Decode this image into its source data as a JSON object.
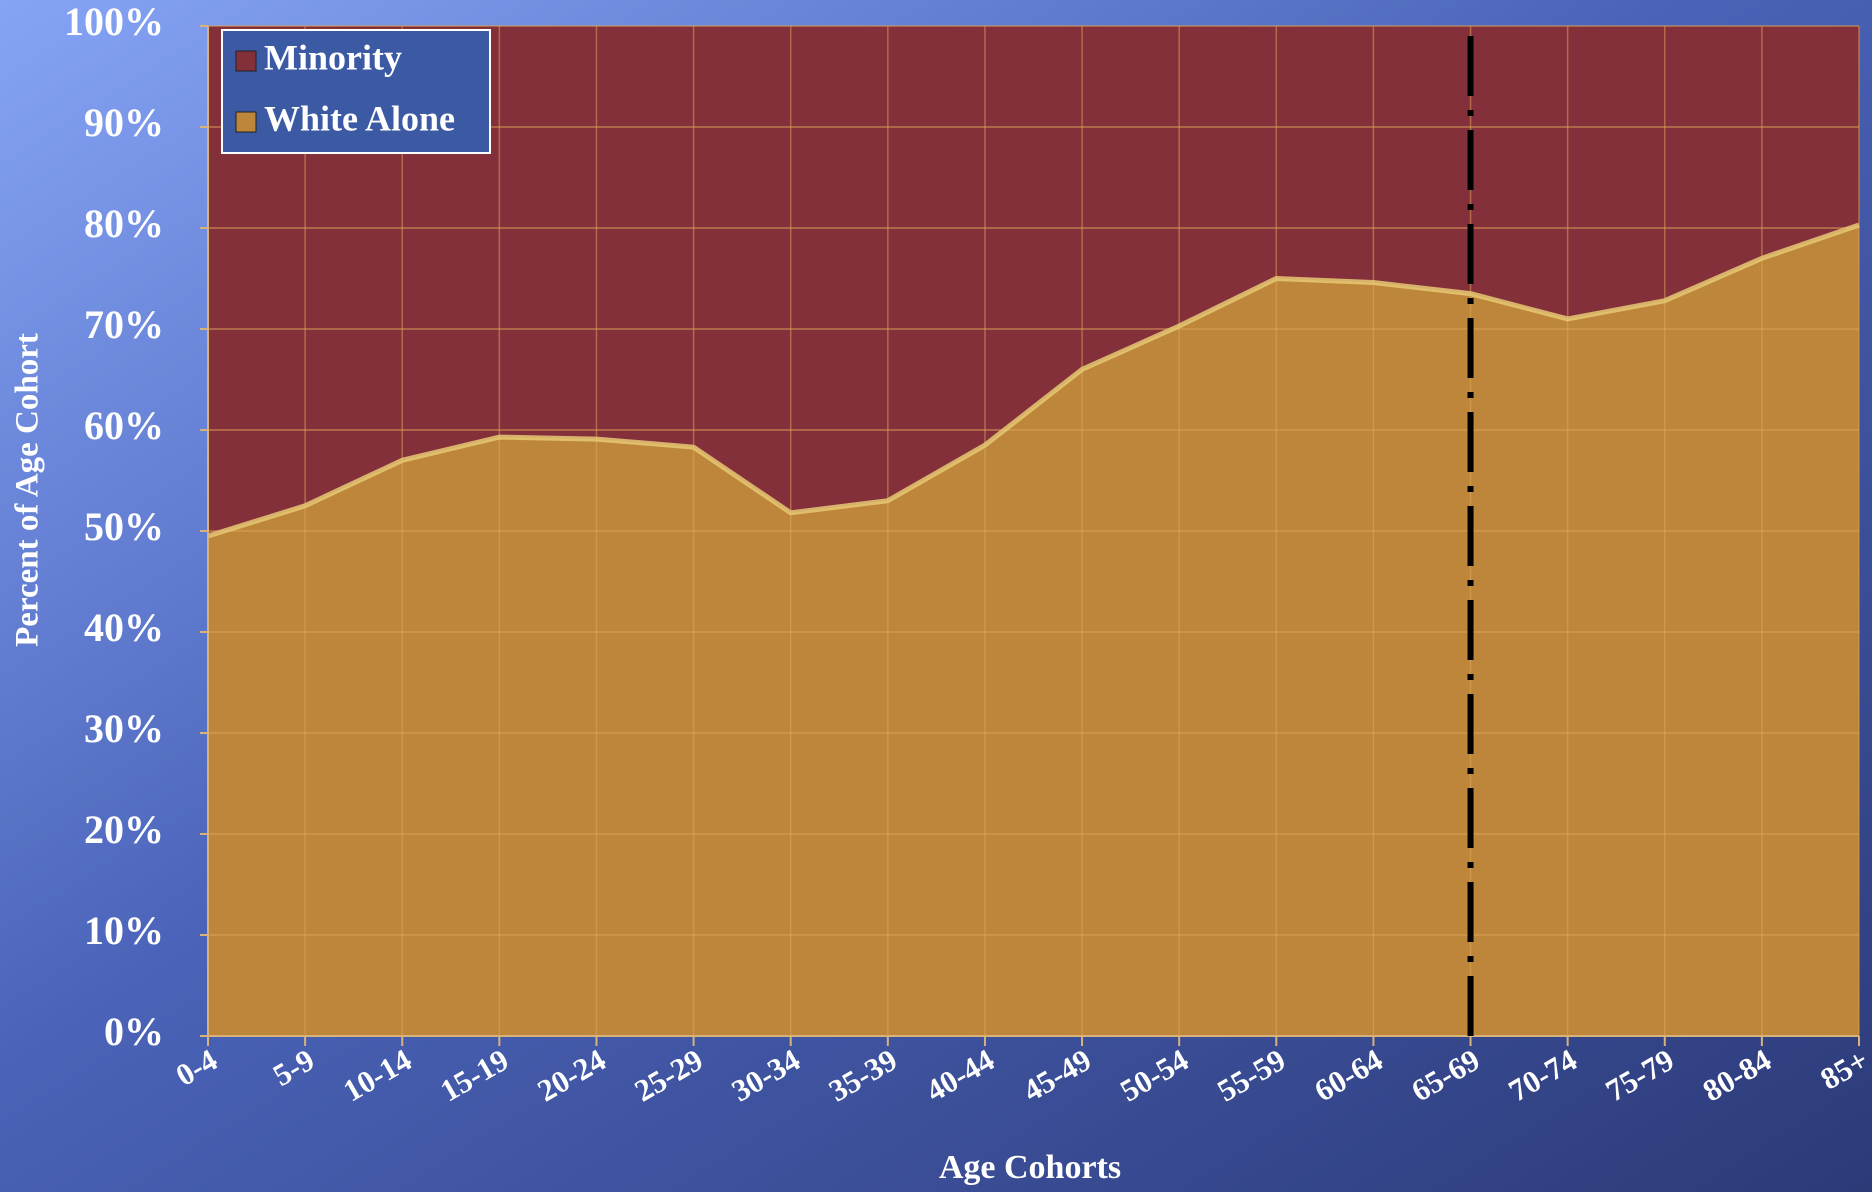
{
  "chart_data": {
    "type": "stacked_area",
    "x_label": "Age Cohorts",
    "y_label": "Percent of Age Cohort",
    "categories": [
      "0-4",
      "5-9",
      "10-14",
      "15-19",
      "20-24",
      "25-29",
      "30-34",
      "35-39",
      "40-44",
      "45-49",
      "50-54",
      "55-59",
      "60-64",
      "65-69",
      "70-74",
      "75-79",
      "80-84",
      "85+"
    ],
    "series": [
      {
        "name": "Minority",
        "color": "#84303a",
        "values": [
          50.5,
          47.5,
          43,
          40.7,
          40.9,
          41.7,
          48.2,
          47,
          41.5,
          34,
          29.7,
          25,
          25.4,
          26.5,
          29,
          27.2,
          23,
          19.7
        ]
      },
      {
        "name": "White Alone",
        "color": "#bd863a",
        "values": [
          49.5,
          52.5,
          57,
          59.3,
          59.1,
          58.3,
          51.8,
          53,
          58.5,
          66,
          70.3,
          75,
          74.6,
          73.5,
          71,
          72.8,
          77,
          80.3
        ]
      }
    ],
    "ylim": [
      0,
      100
    ],
    "yticks": [
      {
        "value": 0,
        "label": "0%"
      },
      {
        "value": 10,
        "label": "10%"
      },
      {
        "value": 20,
        "label": "20%"
      },
      {
        "value": 30,
        "label": "30%"
      },
      {
        "value": 40,
        "label": "40%"
      },
      {
        "value": 50,
        "label": "50%"
      },
      {
        "value": 60,
        "label": "60%"
      },
      {
        "value": 70,
        "label": "70%"
      },
      {
        "value": 80,
        "label": "80%"
      },
      {
        "value": 90,
        "label": "90%"
      },
      {
        "value": 100,
        "label": "100%"
      }
    ],
    "grid": true,
    "legend": "upper-left",
    "reference_line": "65-69"
  }
}
